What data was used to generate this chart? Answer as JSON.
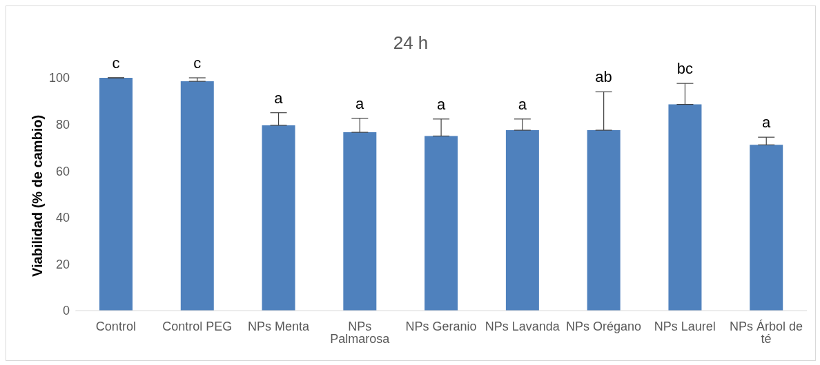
{
  "chart_data": {
    "type": "bar",
    "title": "24 h",
    "ylabel": "Viabilidad  (% de cambio)",
    "categories": [
      "Control",
      "Control PEG",
      "NPs Menta",
      "NPs Palmarosa",
      "NPs Geranio",
      "NPs Lavanda",
      "NPs Orégano",
      "NPs Laurel",
      "NPs Árbol de té"
    ],
    "values": [
      100,
      98.5,
      79.6,
      76.6,
      75,
      77.5,
      77.5,
      88.6,
      71.2
    ],
    "errors": [
      [
        100,
        100
      ],
      [
        98.5,
        100
      ],
      [
        79.6,
        85
      ],
      [
        76.6,
        82.6
      ],
      [
        75,
        82.3
      ],
      [
        77.5,
        82.3
      ],
      [
        77.5,
        94
      ],
      [
        88.6,
        97.6
      ],
      [
        71.2,
        74.5
      ]
    ],
    "color": "#4f81bd",
    "ylim": [
      0,
      100
    ],
    "yticks": [
      0,
      20,
      40,
      60,
      80,
      100
    ],
    "grid": false,
    "legend": false,
    "annotations": [
      {
        "text": "c",
        "x": "Control",
        "y": 100
      },
      {
        "text": "c",
        "x": "Control PEG",
        "y": 100
      },
      {
        "text": "a",
        "x": "NPs Menta",
        "y": 85
      },
      {
        "text": "a",
        "x": "NPs Palmarosa",
        "y": 82.6
      },
      {
        "text": "a",
        "x": "NPs Geranio",
        "y": 82.3
      },
      {
        "text": "a",
        "x": "NPs Lavanda",
        "y": 82.3
      },
      {
        "text": "ab",
        "x": "NPs Orégano",
        "y": 94
      },
      {
        "text": "bc",
        "x": "NPs Laurel",
        "y": 97.6
      },
      {
        "text": "a",
        "x": "NPs Árbol de té",
        "y": 74.5
      }
    ]
  }
}
